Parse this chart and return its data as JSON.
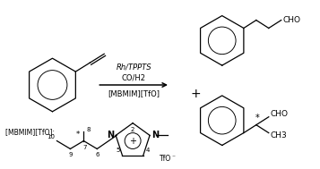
{
  "bg_color": "#ffffff",
  "fig_width": 3.57,
  "fig_height": 1.89,
  "dpi": 100,
  "lc": "#000000",
  "lw": 0.9,
  "fs_small": 5.0,
  "fs_med": 6.0,
  "fs_large": 7.5,
  "cond1": "Rh/TPPTS",
  "cond2": "CO/H2",
  "cond3": "[MBMIM][TfO]",
  "mbmim_label": "[MBMIM][TfO]: ",
  "plus": "+",
  "tfo_minus": "TfO",
  "cho": "CHO",
  "ch3": "CH3",
  "star": "*"
}
